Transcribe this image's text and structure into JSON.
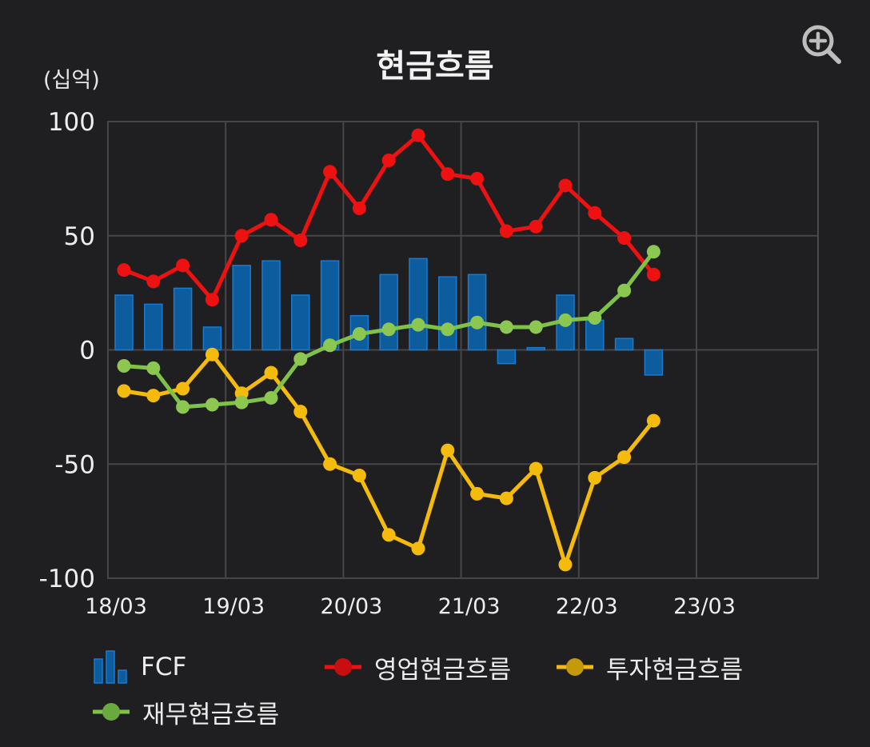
{
  "chart_data": {
    "type": "bar+line",
    "title": "현금흐름",
    "unit_label": "(십억)",
    "ylim": [
      -100,
      100
    ],
    "y_ticks": [
      "100",
      "50",
      "0",
      "-50",
      "-100"
    ],
    "x_tick_labels": [
      "18/03",
      "19/03",
      "20/03",
      "21/03",
      "22/03",
      "23/03"
    ],
    "x": [
      "18/03",
      "18/06",
      "18/09",
      "18/12",
      "19/03",
      "19/06",
      "19/09",
      "19/12",
      "20/03",
      "20/06",
      "20/09",
      "20/12",
      "21/03",
      "21/06",
      "21/09",
      "21/12",
      "22/03",
      "22/06",
      "22/09"
    ],
    "grid": true,
    "legend_position": "bottom",
    "series": [
      {
        "name": "FCF",
        "type": "bar",
        "color": "#0d5c9e",
        "values": [
          24,
          20,
          27,
          10,
          37,
          39,
          24,
          39,
          15,
          33,
          40,
          32,
          33,
          -6,
          1,
          24,
          13,
          5,
          -11
        ]
      },
      {
        "name": "영업현금흐름",
        "type": "line",
        "color": "#ee1111",
        "values": [
          35,
          30,
          37,
          22,
          50,
          57,
          48,
          78,
          62,
          83,
          94,
          77,
          75,
          52,
          54,
          72,
          60,
          49,
          33
        ]
      },
      {
        "name": "투자현금흐름",
        "type": "line",
        "color": "#f5bb0c",
        "values": [
          -18,
          -20,
          -17,
          -2,
          -19,
          -10,
          -27,
          -50,
          -55,
          -81,
          -87,
          -44,
          -63,
          -65,
          -52,
          -94,
          -56,
          -47,
          -31
        ]
      },
      {
        "name": "재무현금흐름",
        "type": "line",
        "color": "#7ec24a",
        "values": [
          -7,
          -8,
          -25,
          -24,
          -23,
          -21,
          -4,
          2,
          7,
          9,
          11,
          9,
          12,
          10,
          10,
          13,
          14,
          26,
          43
        ]
      }
    ]
  },
  "icons": {
    "zoom": "zoom-in-icon"
  }
}
